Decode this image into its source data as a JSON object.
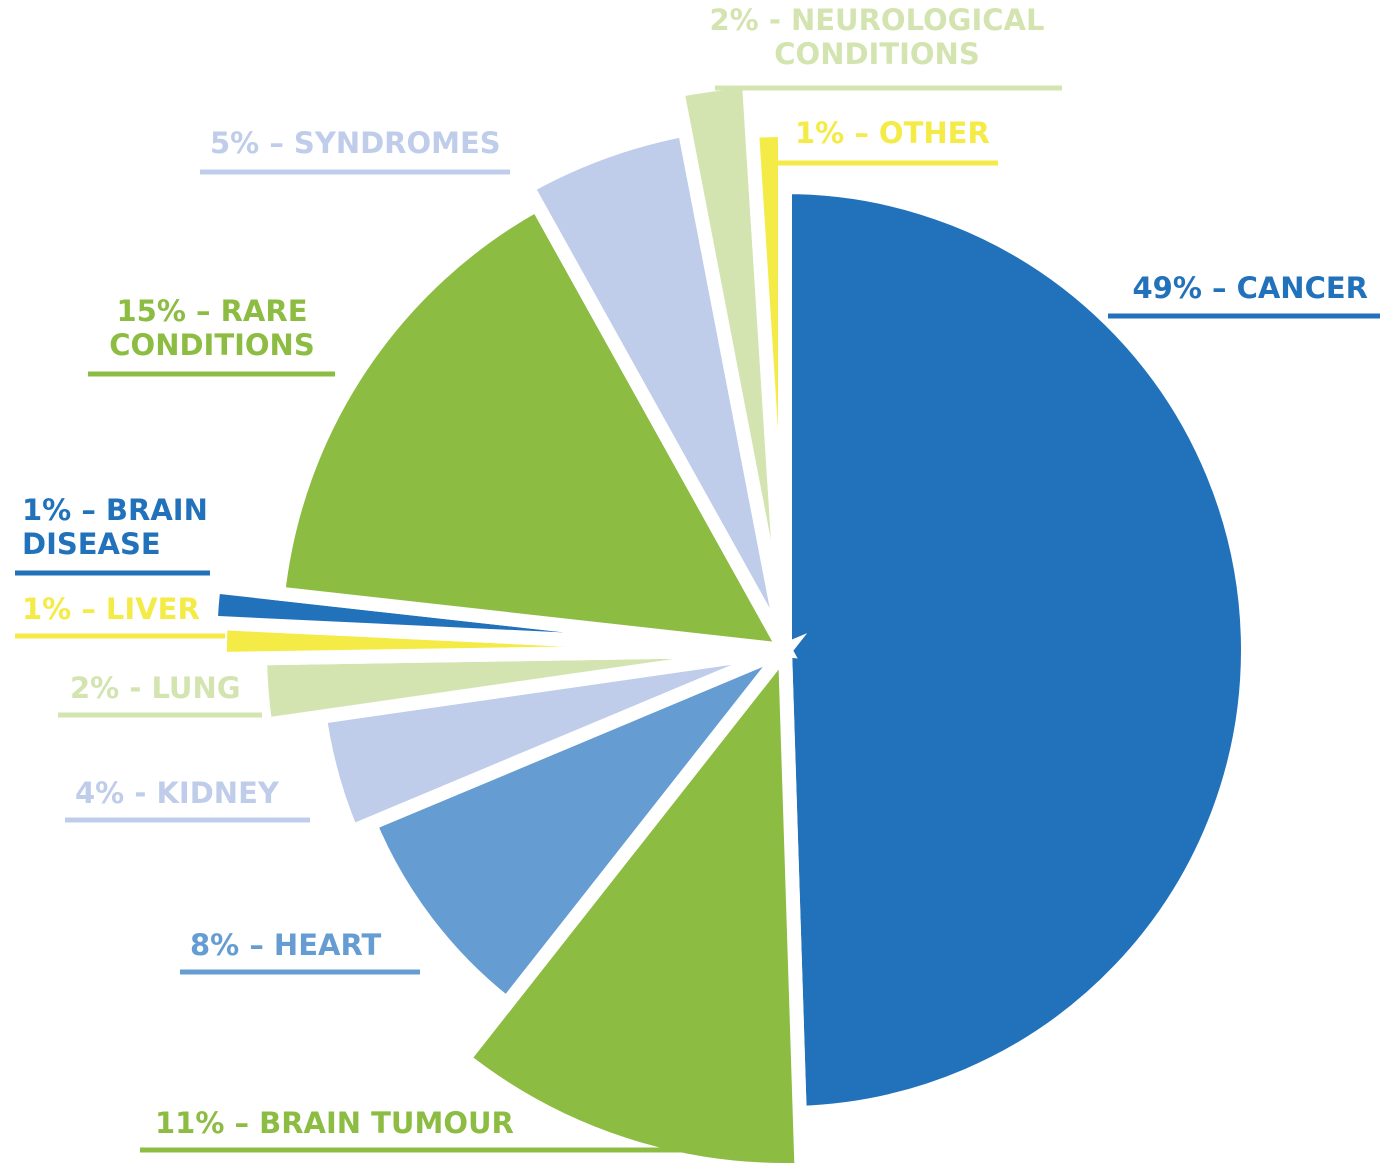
{
  "chart_data": {
    "type": "pie",
    "categories": [
      "49% – CANCER",
      "11% – BRAIN TUMOUR",
      "8% – HEART",
      "4% - KIDNEY",
      "2% - LUNG",
      "1% – LIVER",
      "1% – BRAIN\nDISEASE",
      "15% – RARE\nCONDITIONS",
      "5% – SYNDROMES",
      "2% - NEUROLOGICAL\nCONDITIONS",
      "1% – OTHER"
    ],
    "values": [
      49,
      11,
      8,
      4,
      2,
      1,
      1,
      15,
      5,
      2,
      1
    ],
    "colors": [
      "#2272bb",
      "#8cbc42",
      "#659dd3",
      "#bfcdea",
      "#d3e4b1",
      "#f5eb47",
      "#2272bb",
      "#8cbc42",
      "#bfcdea",
      "#d3e4b1",
      "#f5eb47"
    ]
  }
}
